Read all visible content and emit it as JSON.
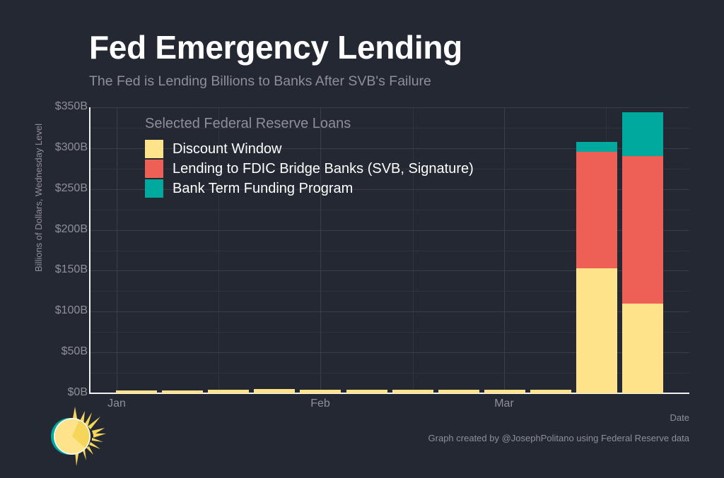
{
  "header": {
    "title": "Fed Emergency Lending",
    "subtitle": "The Fed is Lending Billions to Banks After SVB's Failure"
  },
  "axes": {
    "ylabel": "Billions of Dollars, Wednesday Level",
    "xlabel": "Date",
    "yticks": [
      "$0B",
      "$50B",
      "$100B",
      "$150B",
      "$200B",
      "$250B",
      "$300B",
      "$350B"
    ],
    "xticks": [
      "Jan",
      "Feb",
      "Mar"
    ]
  },
  "legend": {
    "title": "Selected Federal Reserve Loans",
    "items": [
      {
        "label": "Discount Window",
        "color": "#FEE38A"
      },
      {
        "label": "Lending to FDIC Bridge Banks (SVB, Signature)",
        "color": "#EE6055"
      },
      {
        "label": "Bank Term Funding Program",
        "color": "#00A99D"
      }
    ]
  },
  "footer": {
    "caption": "Graph created by @JosephPolitano using Federal Reserve data"
  },
  "colors": {
    "background": "#242832",
    "discount_window": "#FEE38A",
    "fdic_bridge": "#EE6055",
    "btfp": "#00A99D"
  },
  "chart_data": {
    "type": "bar",
    "stacked": true,
    "title": "Fed Emergency Lending",
    "subtitle": "The Fed is Lending Billions to Banks After SVB's Failure",
    "xlabel": "Date",
    "ylabel": "Billions of Dollars, Wednesday Level",
    "ylim": [
      0,
      350
    ],
    "yticks": [
      0,
      50,
      100,
      150,
      200,
      250,
      300,
      350
    ],
    "ytick_labels": [
      "$0B",
      "$50B",
      "$100B",
      "$150B",
      "$200B",
      "$250B",
      "$300B",
      "$350B"
    ],
    "xtick_labels": [
      "Jan",
      "Feb",
      "Mar"
    ],
    "grid": true,
    "legend_position": "top-left inside",
    "categories": [
      "2023-01-04",
      "2023-01-11",
      "2023-01-18",
      "2023-01-25",
      "2023-02-01",
      "2023-02-08",
      "2023-02-15",
      "2023-02-22",
      "2023-03-01",
      "2023-03-08",
      "2023-03-15",
      "2023-03-22"
    ],
    "series": [
      {
        "name": "Discount Window",
        "color": "#FEE38A",
        "values": [
          3.5,
          3.5,
          4.5,
          5.5,
          4.5,
          4.5,
          4.5,
          4.5,
          4,
          4.5,
          153,
          110
        ]
      },
      {
        "name": "Lending to FDIC Bridge Banks (SVB, Signature)",
        "color": "#EE6055",
        "values": [
          0,
          0,
          0,
          0,
          0,
          0,
          0,
          0,
          0,
          0,
          143,
          180
        ]
      },
      {
        "name": "Bank Term Funding Program",
        "color": "#00A99D",
        "values": [
          0,
          0,
          0,
          0,
          0,
          0,
          0,
          0,
          0,
          0,
          12,
          54
        ]
      }
    ]
  }
}
